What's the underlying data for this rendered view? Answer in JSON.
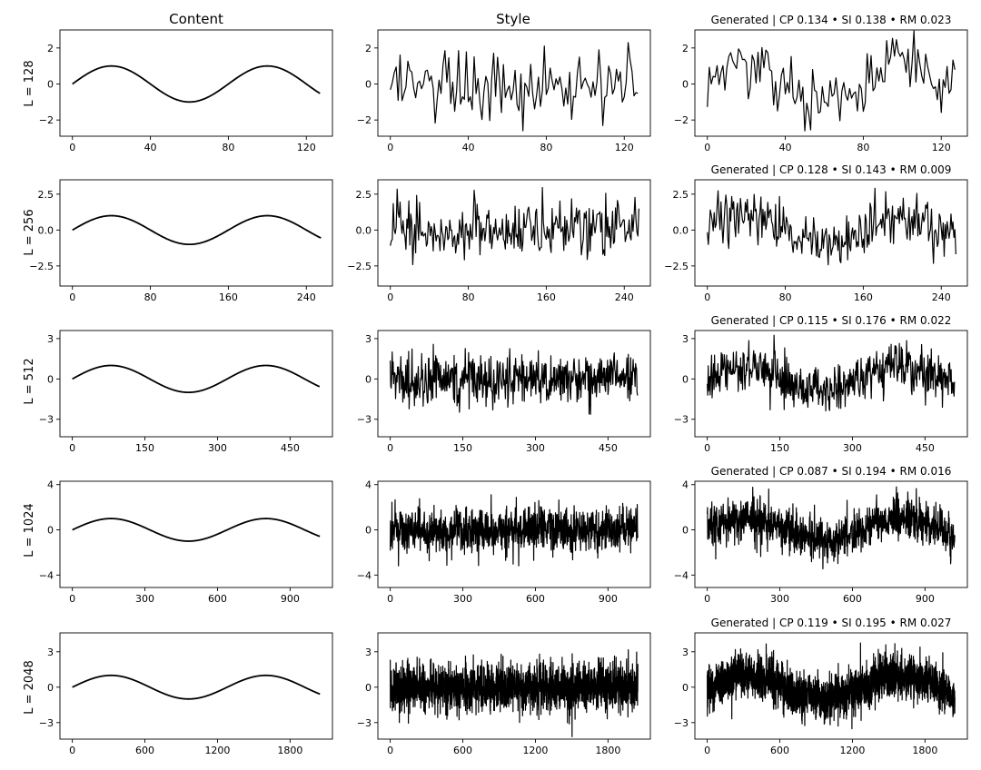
{
  "figure": {
    "column_titles": [
      "Content",
      "Style",
      ""
    ],
    "row_labels": [
      "L = 128",
      "L = 256",
      "L = 512",
      "L = 1024",
      "L = 2048"
    ]
  },
  "chart_data": [
    {
      "type": "line",
      "row": 0,
      "col": 0,
      "title": "",
      "length": 128,
      "x_ticks": [
        0,
        40,
        80,
        120
      ],
      "y_ticks": [
        -2,
        0,
        2
      ],
      "y_tick_labels": [
        "−2",
        "0",
        "2"
      ],
      "xlim": [
        -6.4,
        133.4
      ],
      "ylim": [
        -2.9,
        3.0
      ],
      "series": [
        {
          "kind": "sine",
          "period": 80,
          "amplitude": 1.0
        }
      ],
      "color": "#000000"
    },
    {
      "type": "line",
      "row": 0,
      "col": 1,
      "title": "",
      "length": 128,
      "x_ticks": [
        0,
        40,
        80,
        120
      ],
      "y_ticks": [
        -2,
        0,
        2
      ],
      "y_tick_labels": [
        "−2",
        "0",
        "2"
      ],
      "xlim": [
        -6.4,
        133.4
      ],
      "ylim": [
        -2.9,
        3.0
      ],
      "series": [
        {
          "kind": "noise",
          "std": 1.0,
          "range": [
            -2.6,
            2.3
          ]
        }
      ],
      "color": "#000000"
    },
    {
      "type": "line",
      "row": 0,
      "col": 2,
      "title": "Generated | CP 0.134 • SI 0.138 • RM 0.023",
      "length": 128,
      "x_ticks": [
        0,
        40,
        80,
        120
      ],
      "y_ticks": [
        -2,
        0,
        2
      ],
      "y_tick_labels": [
        "−2",
        "0",
        "2"
      ],
      "xlim": [
        -6.4,
        133.4
      ],
      "ylim": [
        -2.9,
        3.0
      ],
      "series": [
        {
          "kind": "sine+noise",
          "period": 80,
          "amplitude": 1.0,
          "std": 0.85
        }
      ],
      "color": "#000000"
    },
    {
      "type": "line",
      "row": 1,
      "col": 0,
      "title": "",
      "length": 256,
      "x_ticks": [
        0,
        80,
        160,
        240
      ],
      "y_ticks": [
        -2.5,
        0,
        2.5
      ],
      "y_tick_labels": [
        "−2.5",
        "0.0",
        "2.5"
      ],
      "xlim": [
        -12.8,
        266.8
      ],
      "ylim": [
        -3.9,
        3.5
      ],
      "series": [
        {
          "kind": "sine",
          "period": 160,
          "amplitude": 1.0
        }
      ],
      "color": "#000000"
    },
    {
      "type": "line",
      "row": 1,
      "col": 1,
      "title": "",
      "length": 256,
      "x_ticks": [
        0,
        80,
        160,
        240
      ],
      "y_ticks": [
        -2.5,
        0,
        2.5
      ],
      "y_tick_labels": [
        "−2.5",
        "0.0",
        "2.5"
      ],
      "xlim": [
        -12.8,
        266.8
      ],
      "ylim": [
        -3.9,
        3.5
      ],
      "series": [
        {
          "kind": "noise",
          "std": 1.0
        }
      ],
      "color": "#000000"
    },
    {
      "type": "line",
      "row": 1,
      "col": 2,
      "title": "Generated | CP 0.128 • SI 0.143 • RM 0.009",
      "length": 256,
      "x_ticks": [
        0,
        80,
        160,
        240
      ],
      "y_ticks": [
        -2.5,
        0,
        2.5
      ],
      "y_tick_labels": [
        "−2.5",
        "0.0",
        "2.5"
      ],
      "xlim": [
        -12.8,
        266.8
      ],
      "ylim": [
        -3.9,
        3.5
      ],
      "series": [
        {
          "kind": "sine+noise",
          "period": 160,
          "amplitude": 1.0,
          "std": 0.9
        }
      ],
      "color": "#000000"
    },
    {
      "type": "line",
      "row": 2,
      "col": 0,
      "title": "",
      "length": 512,
      "x_ticks": [
        0,
        150,
        300,
        450
      ],
      "y_ticks": [
        -3,
        0,
        3
      ],
      "y_tick_labels": [
        "−3",
        "0",
        "3"
      ],
      "xlim": [
        -25.6,
        537.6
      ],
      "ylim": [
        -4.3,
        3.6
      ],
      "series": [
        {
          "kind": "sine",
          "period": 320,
          "amplitude": 1.0
        }
      ],
      "color": "#000000"
    },
    {
      "type": "line",
      "row": 2,
      "col": 1,
      "title": "",
      "length": 512,
      "x_ticks": [
        0,
        150,
        300,
        450
      ],
      "y_ticks": [
        -3,
        0,
        3
      ],
      "y_tick_labels": [
        "−3",
        "0",
        "3"
      ],
      "xlim": [
        -25.6,
        537.6
      ],
      "ylim": [
        -4.3,
        3.6
      ],
      "series": [
        {
          "kind": "noise",
          "std": 1.0
        }
      ],
      "color": "#000000"
    },
    {
      "type": "line",
      "row": 2,
      "col": 2,
      "title": "Generated | CP 0.115 • SI 0.176 • RM 0.022",
      "length": 512,
      "x_ticks": [
        0,
        150,
        300,
        450
      ],
      "y_ticks": [
        -3,
        0,
        3
      ],
      "y_tick_labels": [
        "−3",
        "0",
        "3"
      ],
      "xlim": [
        -25.6,
        537.6
      ],
      "ylim": [
        -4.3,
        3.6
      ],
      "series": [
        {
          "kind": "sine+noise",
          "period": 320,
          "amplitude": 1.0,
          "std": 0.9
        }
      ],
      "color": "#000000"
    },
    {
      "type": "line",
      "row": 3,
      "col": 0,
      "title": "",
      "length": 1024,
      "x_ticks": [
        0,
        300,
        600,
        900
      ],
      "y_ticks": [
        -4,
        0,
        4
      ],
      "y_tick_labels": [
        "−4",
        "0",
        "4"
      ],
      "xlim": [
        -51.2,
        1075.2
      ],
      "ylim": [
        -5.1,
        4.3
      ],
      "series": [
        {
          "kind": "sine",
          "period": 640,
          "amplitude": 1.0
        }
      ],
      "color": "#000000"
    },
    {
      "type": "line",
      "row": 3,
      "col": 1,
      "title": "",
      "length": 1024,
      "x_ticks": [
        0,
        300,
        600,
        900
      ],
      "y_ticks": [
        -4,
        0,
        4
      ],
      "y_tick_labels": [
        "−4",
        "0",
        "4"
      ],
      "xlim": [
        -51.2,
        1075.2
      ],
      "ylim": [
        -5.1,
        4.3
      ],
      "series": [
        {
          "kind": "noise",
          "std": 1.0
        }
      ],
      "color": "#000000"
    },
    {
      "type": "line",
      "row": 3,
      "col": 2,
      "title": "Generated | CP 0.087 • SI 0.194 • RM 0.016",
      "length": 1024,
      "x_ticks": [
        0,
        300,
        600,
        900
      ],
      "y_ticks": [
        -4,
        0,
        4
      ],
      "y_tick_labels": [
        "−4",
        "0",
        "4"
      ],
      "xlim": [
        -51.2,
        1075.2
      ],
      "ylim": [
        -5.1,
        4.3
      ],
      "series": [
        {
          "kind": "sine+noise",
          "period": 640,
          "amplitude": 1.0,
          "std": 0.95
        }
      ],
      "color": "#000000"
    },
    {
      "type": "line",
      "row": 4,
      "col": 0,
      "title": "",
      "length": 2048,
      "x_ticks": [
        0,
        600,
        1200,
        1800
      ],
      "y_ticks": [
        -3,
        0,
        3
      ],
      "y_tick_labels": [
        "−3",
        "0",
        "3"
      ],
      "xlim": [
        -102.4,
        2150.4
      ],
      "ylim": [
        -4.4,
        4.6
      ],
      "series": [
        {
          "kind": "sine",
          "period": 1280,
          "amplitude": 1.0
        }
      ],
      "color": "#000000"
    },
    {
      "type": "line",
      "row": 4,
      "col": 1,
      "title": "",
      "length": 2048,
      "x_ticks": [
        0,
        600,
        1200,
        1800
      ],
      "y_ticks": [
        -3,
        0,
        3
      ],
      "y_tick_labels": [
        "−3",
        "0",
        "3"
      ],
      "xlim": [
        -102.4,
        2150.4
      ],
      "ylim": [
        -4.4,
        4.6
      ],
      "series": [
        {
          "kind": "noise",
          "std": 1.0
        }
      ],
      "color": "#000000"
    },
    {
      "type": "line",
      "row": 4,
      "col": 2,
      "title": "Generated | CP 0.119 • SI 0.195 • RM 0.027",
      "length": 2048,
      "x_ticks": [
        0,
        600,
        1200,
        1800
      ],
      "y_ticks": [
        -3,
        0,
        3
      ],
      "y_tick_labels": [
        "−3",
        "0",
        "3"
      ],
      "xlim": [
        -102.4,
        2150.4
      ],
      "ylim": [
        -4.4,
        4.6
      ],
      "series": [
        {
          "kind": "sine+noise",
          "period": 1280,
          "amplitude": 1.0,
          "std": 0.95
        }
      ],
      "color": "#000000"
    }
  ]
}
